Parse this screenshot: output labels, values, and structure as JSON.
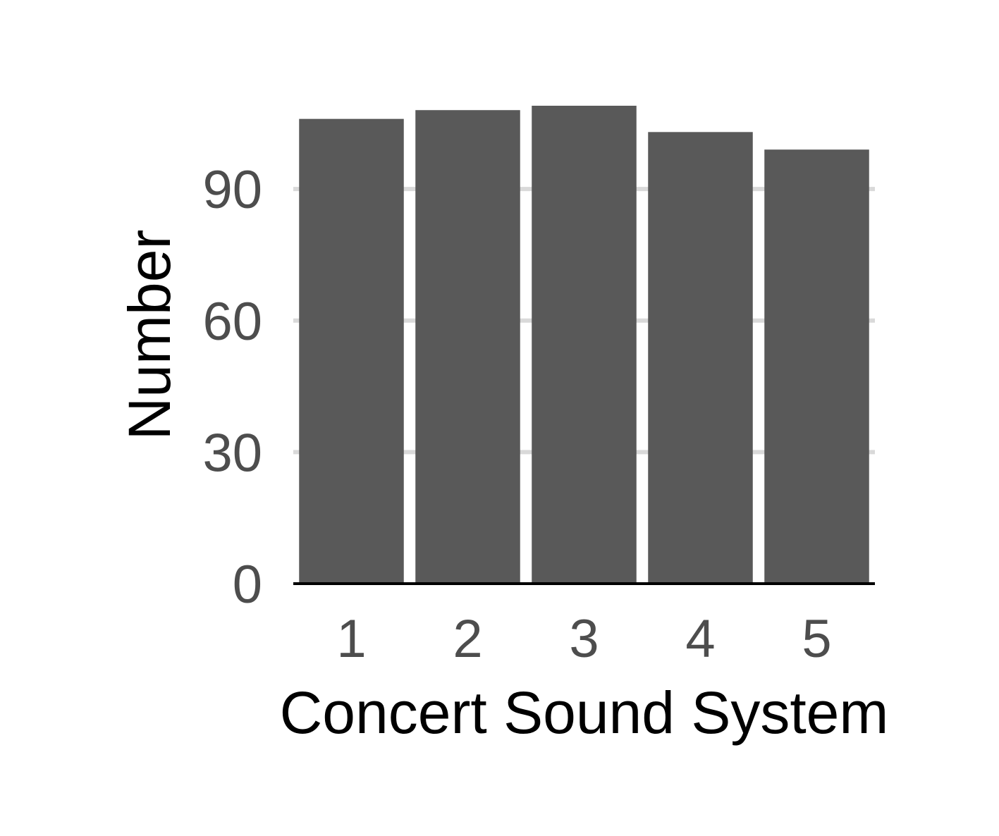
{
  "chart_data": {
    "type": "bar",
    "title": "",
    "xlabel": "Concert Sound System",
    "ylabel": "Number",
    "categories": [
      "1",
      "2",
      "3",
      "4",
      "5"
    ],
    "values": [
      106,
      108,
      109,
      103,
      99
    ],
    "ylim": [
      0,
      109
    ],
    "yticks": [
      0,
      30,
      60,
      90
    ],
    "ytick_labels": [
      "0",
      "30",
      "60",
      "90"
    ],
    "grid": "horizontal major",
    "legend": "none",
    "colors": {
      "bar": "#595959",
      "grid": "#d9d9d9",
      "axis_line": "#000000",
      "tick_label": "#4d4d4d",
      "axis_title": "#000000"
    }
  }
}
